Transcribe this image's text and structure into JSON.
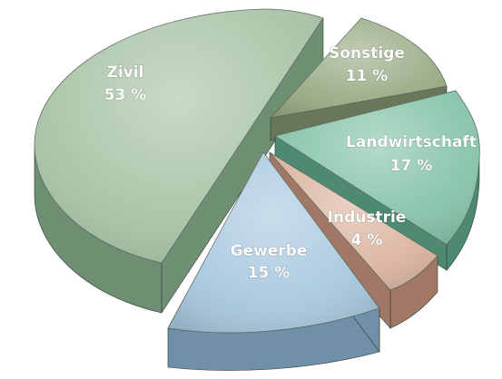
{
  "chart_data": {
    "type": "pie",
    "title": "",
    "unit": "%",
    "slices": [
      {
        "label": "Zivil",
        "value": 53,
        "value_text": "53 %",
        "color": "#a9c3a6",
        "side": "#6f8f72"
      },
      {
        "label": "Sonstige",
        "value": 11,
        "value_text": "11 %",
        "color": "#9aac86",
        "side": "#67775a"
      },
      {
        "label": "Landwirtschaft",
        "value": 17,
        "value_text": "17 %",
        "color": "#86c4a8",
        "side": "#4e8a72"
      },
      {
        "label": "Industrie",
        "value": 4,
        "value_text": "4 %",
        "color": "#dcb6a2",
        "side": "#a17866"
      },
      {
        "label": "Gewerbe",
        "value": 15,
        "value_text": "15 %",
        "color": "#a9c9e0",
        "side": "#6f90a6"
      }
    ]
  }
}
